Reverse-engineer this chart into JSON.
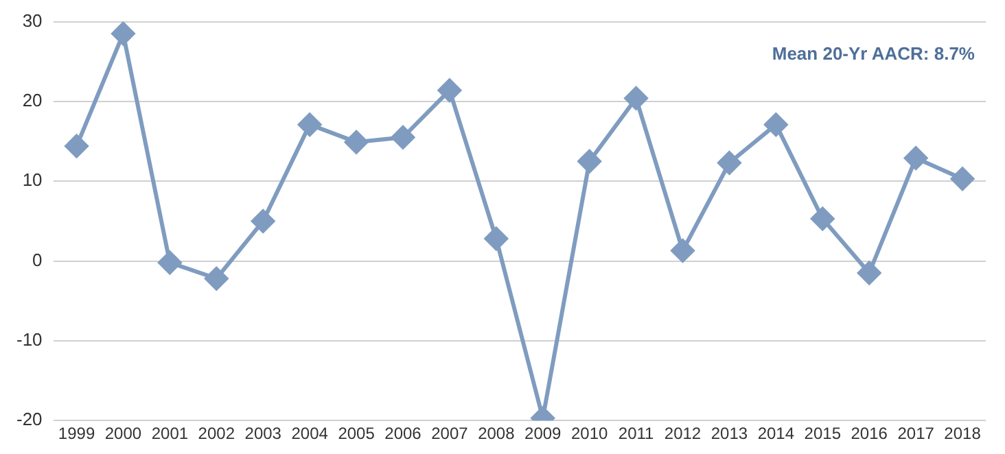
{
  "chart_data": {
    "type": "line",
    "categories": [
      "1999",
      "2000",
      "2001",
      "2002",
      "2003",
      "2004",
      "2005",
      "2006",
      "2007",
      "2008",
      "2009",
      "2010",
      "2011",
      "2012",
      "2013",
      "2014",
      "2015",
      "2016",
      "2017",
      "2018"
    ],
    "series": [
      {
        "color": "#7f9cc0",
        "values": [
          14.4,
          28.5,
          -0.2,
          -2.2,
          5.0,
          17.1,
          14.9,
          15.5,
          21.4,
          2.8,
          -19.7,
          12.5,
          20.4,
          1.3,
          12.3,
          17.1,
          5.3,
          -1.5,
          12.9,
          10.3
        ]
      }
    ],
    "ylim": [
      -20,
      30
    ],
    "yticks": [
      -20,
      -10,
      0,
      10,
      20,
      30
    ],
    "grid": "y",
    "legend": false,
    "marker": "diamond",
    "line_style": "solid",
    "annotations": [
      "Mean 20-Yr AACR: 8.7%"
    ]
  }
}
